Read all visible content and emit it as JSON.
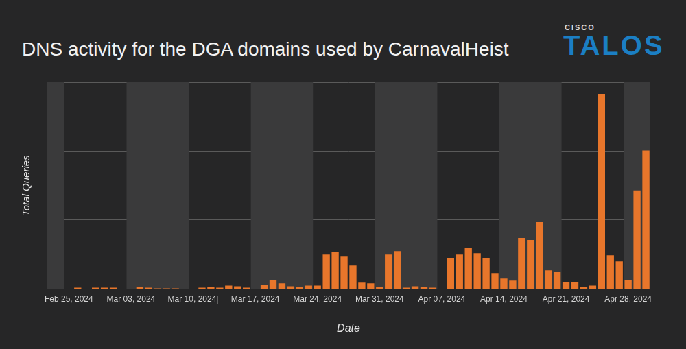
{
  "chart_data": {
    "type": "bar",
    "title": "DNS activity for the DGA domains used by CarnavalHeist",
    "x_label": "Date",
    "y_label": "Total Queries",
    "annotations": [
      "CISCO",
      "TALOS"
    ],
    "categories": [
      null,
      null,
      "Feb 25, 2024",
      null,
      null,
      null,
      null,
      null,
      null,
      "Mar 03, 2024",
      null,
      null,
      null,
      null,
      null,
      null,
      "Mar 10, 2024|",
      null,
      null,
      null,
      null,
      null,
      null,
      "Mar 17, 2024",
      null,
      null,
      null,
      null,
      null,
      null,
      "Mar 24, 2024",
      null,
      null,
      null,
      null,
      null,
      null,
      "Mar 31, 2024",
      null,
      null,
      null,
      null,
      null,
      null,
      "Apr 07, 2024",
      null,
      null,
      null,
      null,
      null,
      null,
      "Apr 14, 2024",
      null,
      null,
      null,
      null,
      null,
      null,
      "Apr 21, 2024",
      null,
      null,
      null,
      null,
      null,
      null,
      "Apr 28, 2024",
      null,
      null
    ],
    "values": [
      0,
      0,
      0,
      0.02,
      0,
      0.02,
      0.02,
      0.02,
      0,
      0,
      0.03,
      0.02,
      0.01,
      0.01,
      0.01,
      0,
      0,
      0.02,
      0.03,
      0.02,
      0.05,
      0.04,
      0.02,
      0,
      0.06,
      0.13,
      0.08,
      0.04,
      0.03,
      0.05,
      0.05,
      0.5,
      0.54,
      0.47,
      0.34,
      0.09,
      0.08,
      0.03,
      0.5,
      0.55,
      0.02,
      0.04,
      0.03,
      0.02,
      0,
      0.45,
      0.5,
      0.6,
      0.52,
      0.45,
      0.23,
      0.15,
      0.12,
      0.74,
      0.71,
      0.97,
      0.27,
      0.25,
      0.1,
      0.1,
      0.03,
      0.05,
      2.83,
      0.49,
      0.4,
      0.13,
      1.43,
      2.01
    ],
    "color": "#e8762b",
    "ylim": [
      0,
      3
    ],
    "yticks": [
      0,
      1,
      2,
      3
    ],
    "grid": true,
    "tick_labels": "x"
  }
}
